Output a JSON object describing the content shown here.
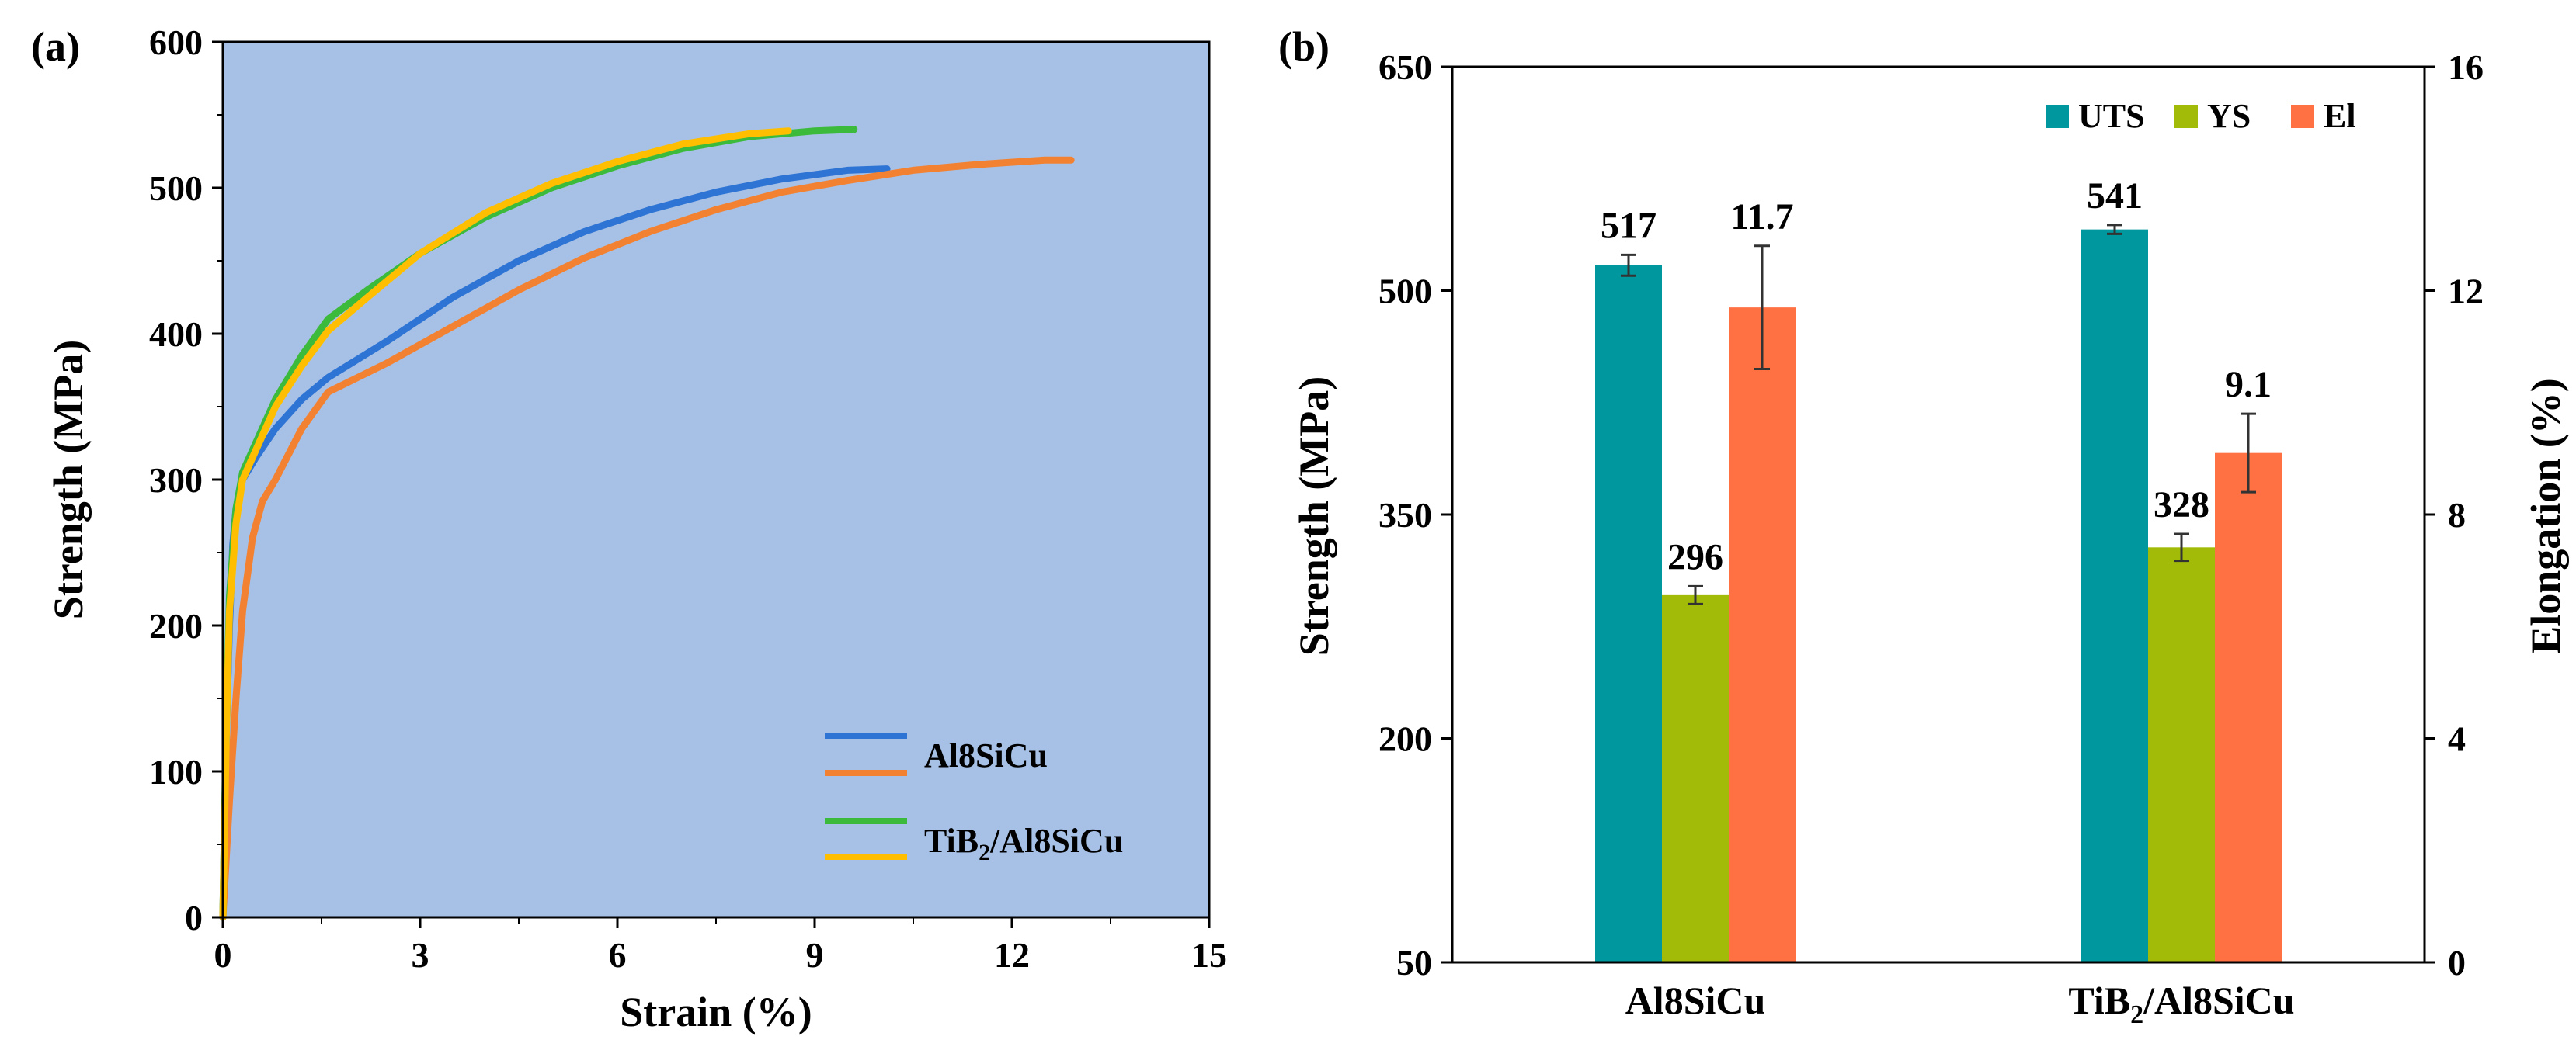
{
  "chart_data": [
    {
      "id": "a",
      "type": "line",
      "panel_label": "(a)",
      "xlabel": "Strain (%)",
      "ylabel": "Strength (MPa)",
      "xlim": [
        0,
        15
      ],
      "ylim": [
        0,
        600
      ],
      "xticks": [
        "0",
        "3",
        "6",
        "9",
        "12",
        "15"
      ],
      "yticks": [
        "0",
        "100",
        "200",
        "300",
        "400",
        "500",
        "600"
      ],
      "background": "#a7c1e6",
      "legend_position": "bottom-right",
      "legend": [
        {
          "group": "Al8SiCu",
          "label": "Al8SiCu",
          "colors": [
            "#2e74d4",
            "#f28232"
          ]
        },
        {
          "group": "TiB2",
          "label_main": "TiB",
          "label_sub": "2",
          "label_rest": "/Al8SiCu",
          "colors": [
            "#3cba3c",
            "#ffbf00"
          ]
        }
      ],
      "series": [
        {
          "name": "Al8SiCu-1",
          "color": "#2e74d4",
          "points": [
            [
              0,
              0
            ],
            [
              0.05,
              120
            ],
            [
              0.1,
              200
            ],
            [
              0.15,
              255
            ],
            [
              0.2,
              280
            ],
            [
              0.3,
              300
            ],
            [
              0.5,
              315
            ],
            [
              0.8,
              335
            ],
            [
              1.2,
              355
            ],
            [
              1.6,
              370
            ],
            [
              2.5,
              395
            ],
            [
              3.5,
              425
            ],
            [
              4.5,
              450
            ],
            [
              5.5,
              470
            ],
            [
              6.5,
              485
            ],
            [
              7.5,
              497
            ],
            [
              8.5,
              506
            ],
            [
              9.5,
              512
            ],
            [
              10.1,
              513
            ]
          ]
        },
        {
          "name": "Al8SiCu-2",
          "color": "#f28232",
          "points": [
            [
              0,
              0
            ],
            [
              0.1,
              80
            ],
            [
              0.2,
              150
            ],
            [
              0.3,
              210
            ],
            [
              0.45,
              260
            ],
            [
              0.6,
              285
            ],
            [
              0.8,
              300
            ],
            [
              1.2,
              335
            ],
            [
              1.6,
              360
            ],
            [
              2.5,
              380
            ],
            [
              3.5,
              405
            ],
            [
              4.5,
              430
            ],
            [
              5.5,
              452
            ],
            [
              6.5,
              470
            ],
            [
              7.5,
              485
            ],
            [
              8.5,
              497
            ],
            [
              9.5,
              505
            ],
            [
              10.5,
              512
            ],
            [
              11.5,
              516
            ],
            [
              12.5,
              519
            ],
            [
              12.9,
              519
            ]
          ]
        },
        {
          "name": "TiB2/Al8SiCu-1",
          "color": "#3cba3c",
          "points": [
            [
              0,
              0
            ],
            [
              0.05,
              130
            ],
            [
              0.1,
              220
            ],
            [
              0.2,
              280
            ],
            [
              0.3,
              305
            ],
            [
              0.5,
              325
            ],
            [
              0.8,
              355
            ],
            [
              1.2,
              385
            ],
            [
              1.6,
              410
            ],
            [
              2.2,
              430
            ],
            [
              3,
              455
            ],
            [
              4,
              480
            ],
            [
              5,
              500
            ],
            [
              6,
              515
            ],
            [
              7,
              527
            ],
            [
              8,
              535
            ],
            [
              9,
              539
            ],
            [
              9.6,
              540
            ]
          ]
        },
        {
          "name": "TiB2/Al8SiCu-2",
          "color": "#ffbf00",
          "points": [
            [
              0,
              0
            ],
            [
              0.05,
              120
            ],
            [
              0.1,
              210
            ],
            [
              0.2,
              270
            ],
            [
              0.3,
              300
            ],
            [
              0.5,
              320
            ],
            [
              0.8,
              350
            ],
            [
              1.2,
              378
            ],
            [
              1.6,
              402
            ],
            [
              2.2,
              425
            ],
            [
              3,
              455
            ],
            [
              4,
              483
            ],
            [
              5,
              503
            ],
            [
              6,
              518
            ],
            [
              7,
              530
            ],
            [
              8,
              537
            ],
            [
              8.6,
              539
            ]
          ]
        }
      ]
    },
    {
      "id": "b",
      "type": "bar",
      "panel_label": "(b)",
      "categories": [
        "Al8SiCu",
        "TiB2/Al8SiCu"
      ],
      "category_labels": [
        {
          "main": "Al8SiCu",
          "sub": "",
          "rest": ""
        },
        {
          "main": "TiB",
          "sub": "2",
          "rest": "/Al8SiCu"
        }
      ],
      "ylabel": "Strength (MPa)",
      "y2label": "Elongation (%)",
      "ylim": [
        50,
        650
      ],
      "y2lim": [
        0,
        16
      ],
      "yticks": [
        "50",
        "200",
        "350",
        "500",
        "650"
      ],
      "y2ticks": [
        "0",
        "4",
        "8",
        "12",
        "16"
      ],
      "legend_position": "top-right",
      "series": [
        {
          "name": "UTS",
          "axis": "left",
          "color": "#00979e",
          "values": [
            517,
            541
          ],
          "errors": [
            7,
            3
          ],
          "labels": [
            "517",
            "541"
          ]
        },
        {
          "name": "YS",
          "axis": "left",
          "color": "#a2bb08",
          "values": [
            296,
            328
          ],
          "errors": [
            6,
            9
          ],
          "labels": [
            "296",
            "328"
          ]
        },
        {
          "name": "El",
          "axis": "right",
          "color": "#ff7043",
          "values": [
            11.7,
            9.1
          ],
          "errors": [
            1.1,
            0.7
          ],
          "labels": [
            "11.7",
            "9.1"
          ]
        }
      ]
    }
  ]
}
